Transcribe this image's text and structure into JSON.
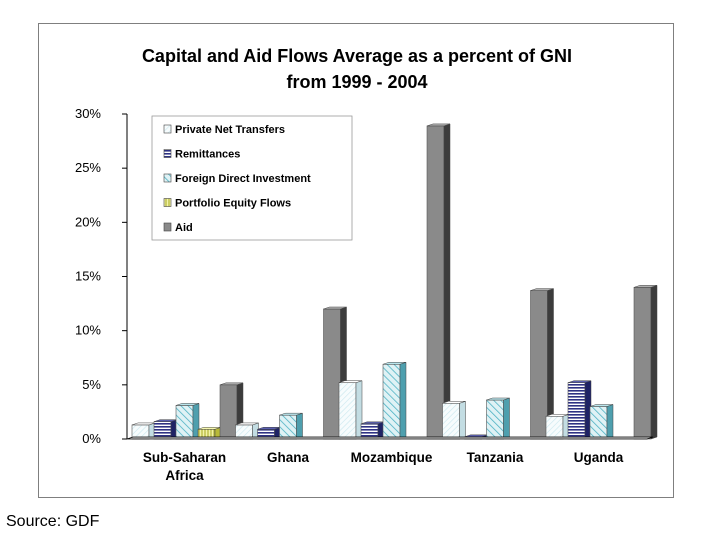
{
  "chart_data": {
    "type": "bar",
    "title_lines": [
      "Capital and Aid Flows Average as a percent of GNI",
      "from 1999 - 2004"
    ],
    "categories": [
      [
        "Sub-Saharan",
        "Africa"
      ],
      [
        "Ghana"
      ],
      [
        "Mozambique"
      ],
      [
        "Tanzania"
      ],
      [
        "Uganda"
      ]
    ],
    "series": [
      {
        "name": "Private Net Transfers",
        "values": [
          1.3,
          1.3,
          5.2,
          3.3,
          2.1
        ]
      },
      {
        "name": "Remittances",
        "values": [
          1.6,
          0.9,
          1.4,
          0.2,
          5.2
        ]
      },
      {
        "name": "Foreign Direct Investment",
        "values": [
          3.1,
          2.2,
          6.9,
          3.6,
          3.0
        ]
      },
      {
        "name": "Portfolio Equity Flows",
        "values": [
          0.9,
          0.0,
          0.0,
          0.0,
          0.0
        ]
      },
      {
        "name": "Aid",
        "values": [
          5.0,
          12.0,
          28.9,
          13.7,
          14.0
        ]
      }
    ],
    "y_tick_labels": [
      "0%",
      "5%",
      "10%",
      "15%",
      "20%",
      "25%",
      "30%"
    ],
    "ylim": [
      0,
      30
    ],
    "legend_position": "top-left",
    "colors": {
      "private_net_transfers": "#e6f4f7",
      "remittances": "#3a3f8f",
      "foreign_direct_investment": "#8fd0db",
      "portfolio_equity_flows": "#e8ea5a",
      "aid": "#8a8a8a"
    }
  },
  "source_text": "Source: GDF"
}
